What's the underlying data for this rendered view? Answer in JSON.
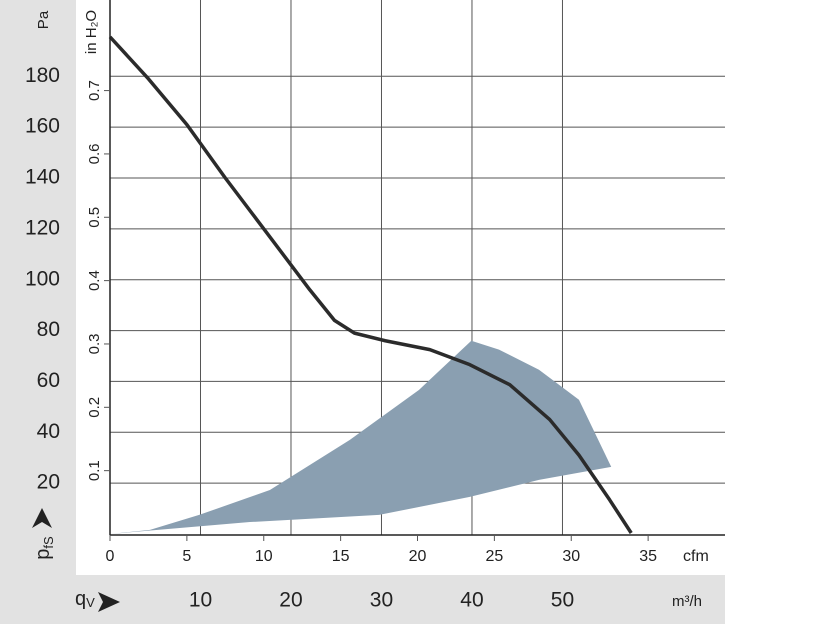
{
  "chart_data": {
    "type": "line",
    "y_label": "Pa",
    "y2_label": "in H₂O",
    "x_label": "cfm",
    "x2_label": "m³/h",
    "y_symbol": {
      "main": "p",
      "sub": "fS"
    },
    "x_symbol": {
      "main": "q",
      "sub": "V"
    },
    "xlim": [
      0,
      40
    ],
    "xticks": [
      0,
      5,
      10,
      15,
      20,
      25,
      30,
      35
    ],
    "x2lim": [
      0,
      67.96
    ],
    "x2ticks": [
      10,
      20,
      30,
      40,
      50
    ],
    "ylim": [
      0,
      210
    ],
    "yticks": [
      20,
      40,
      60,
      80,
      100,
      120,
      140,
      160,
      180
    ],
    "y2lim": [
      0,
      0.843
    ],
    "y2ticks": [
      0.1,
      0.2,
      0.3,
      0.4,
      0.5,
      0.6,
      0.7
    ],
    "grid": true,
    "series": [
      {
        "color": "#8a9fb1",
        "fill": true,
        "x": [
          0,
          9.1,
          17.5,
          23.4,
          27.9,
          32.6,
          30.5,
          27.9,
          25.3,
          23.5,
          20.1,
          15.6,
          10.4,
          5.8,
          2.6
        ],
        "values": [
          0,
          4.7,
          7.5,
          14.6,
          21.3,
          26.4,
          52.8,
          64.6,
          72.5,
          76,
          56.7,
          37,
          17.3,
          7.5,
          1.6
        ]
      },
      {
        "color": "#2b2b2b",
        "fill": false,
        "x": [
          0,
          2.5,
          5,
          7.5,
          10,
          13,
          14.6,
          15.9,
          17.9,
          20.8,
          23.4,
          26,
          28.6,
          30.5,
          32.5,
          33.9
        ],
        "values": [
          195.5,
          179,
          161,
          140,
          120,
          96,
          84,
          79,
          76,
          72.5,
          66.6,
          58.7,
          45,
          31,
          13.4,
          0.4
        ]
      }
    ]
  }
}
